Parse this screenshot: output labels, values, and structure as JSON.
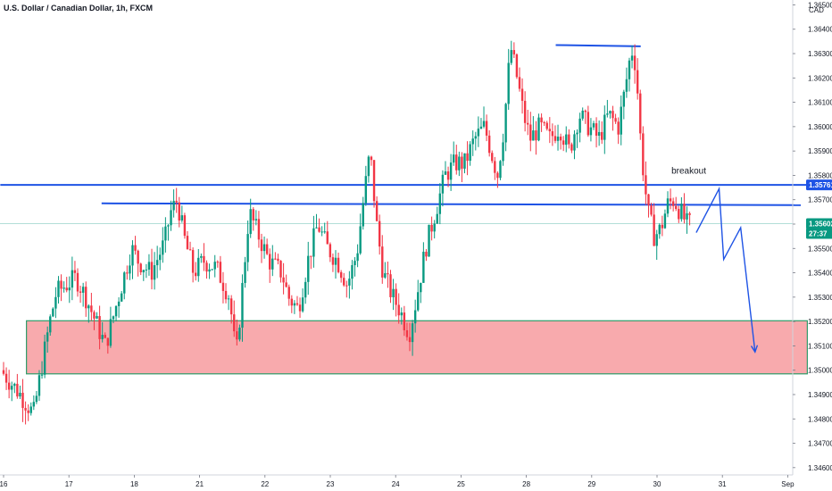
{
  "chart_data": {
    "type": "candlestick",
    "title": "U.S. Dollar / Canadian Dollar, 1h, FXCM",
    "currency": "CAD",
    "ylim": [
      1.3457,
      1.3652
    ],
    "yticks": [
      "1.34600",
      "1.34700",
      "1.34800",
      "1.34900",
      "1.35000",
      "1.35100",
      "1.35200",
      "1.35300",
      "1.35400",
      "1.35500",
      "1.35600",
      "1.35700",
      "1.35800",
      "1.35900",
      "1.36000",
      "1.36100",
      "1.36200",
      "1.36300",
      "1.36400",
      "1.36500"
    ],
    "xticks": [
      {
        "label": "16",
        "x": 0.0
      },
      {
        "label": "17",
        "x": 1.0
      },
      {
        "label": "18",
        "x": 2.0
      },
      {
        "label": "21",
        "x": 3.0
      },
      {
        "label": "22",
        "x": 4.0
      },
      {
        "label": "23",
        "x": 5.0
      },
      {
        "label": "24",
        "x": 6.0
      },
      {
        "label": "25",
        "x": 7.0
      },
      {
        "label": "28",
        "x": 8.0
      },
      {
        "label": "29",
        "x": 9.0
      },
      {
        "label": "30",
        "x": 10.0
      },
      {
        "label": "31",
        "x": 11.0
      },
      {
        "label": "Sep",
        "x": 12.0
      }
    ],
    "xlim": [
      -0.05,
      12.3
    ],
    "price_path": [
      [
        0.0,
        1.35
      ],
      [
        0.3,
        1.349
      ],
      [
        0.5,
        1.3482
      ],
      [
        0.65,
        1.3505
      ],
      [
        0.75,
        1.352
      ],
      [
        0.85,
        1.3532
      ],
      [
        1.0,
        1.3535
      ],
      [
        1.15,
        1.3538
      ],
      [
        1.3,
        1.353
      ],
      [
        1.45,
        1.352
      ],
      [
        1.6,
        1.351
      ],
      [
        1.75,
        1.3525
      ],
      [
        1.9,
        1.354
      ],
      [
        2.0,
        1.355
      ],
      [
        2.1,
        1.3545
      ],
      [
        2.3,
        1.354
      ],
      [
        2.5,
        1.3552
      ],
      [
        2.6,
        1.3565
      ],
      [
        2.7,
        1.357
      ],
      [
        2.8,
        1.3555
      ],
      [
        2.95,
        1.354
      ],
      [
        3.1,
        1.3545
      ],
      [
        3.3,
        1.3542
      ],
      [
        3.5,
        1.353
      ],
      [
        3.6,
        1.3505
      ],
      [
        3.7,
        1.3535
      ],
      [
        3.8,
        1.3565
      ],
      [
        3.95,
        1.3555
      ],
      [
        4.1,
        1.3545
      ],
      [
        4.3,
        1.354
      ],
      [
        4.4,
        1.353
      ],
      [
        4.55,
        1.3525
      ],
      [
        4.7,
        1.3545
      ],
      [
        4.85,
        1.356
      ],
      [
        5.0,
        1.355
      ],
      [
        5.15,
        1.3545
      ],
      [
        5.3,
        1.3535
      ],
      [
        5.45,
        1.3548
      ],
      [
        5.55,
        1.357
      ],
      [
        5.65,
        1.359
      ],
      [
        5.75,
        1.356
      ],
      [
        5.85,
        1.354
      ],
      [
        6.0,
        1.353
      ],
      [
        6.1,
        1.3525
      ],
      [
        6.25,
        1.3515
      ],
      [
        6.35,
        1.3528
      ],
      [
        6.5,
        1.355
      ],
      [
        6.65,
        1.3565
      ],
      [
        6.8,
        1.358
      ],
      [
        6.95,
        1.3585
      ],
      [
        7.1,
        1.3585
      ],
      [
        7.25,
        1.3595
      ],
      [
        7.4,
        1.36
      ],
      [
        7.5,
        1.359
      ],
      [
        7.6,
        1.358
      ],
      [
        7.7,
        1.36
      ],
      [
        7.8,
        1.3633
      ],
      [
        7.9,
        1.362
      ],
      [
        8.0,
        1.3605
      ],
      [
        8.1,
        1.3595
      ],
      [
        8.25,
        1.36
      ],
      [
        8.4,
        1.3595
      ],
      [
        8.55,
        1.36
      ],
      [
        8.7,
        1.359
      ],
      [
        8.85,
        1.3605
      ],
      [
        9.0,
        1.36
      ],
      [
        9.15,
        1.3595
      ],
      [
        9.3,
        1.3605
      ],
      [
        9.45,
        1.36
      ],
      [
        9.55,
        1.3615
      ],
      [
        9.65,
        1.3632
      ],
      [
        9.72,
        1.3625
      ],
      [
        9.8,
        1.359
      ],
      [
        9.9,
        1.3565
      ],
      [
        10.0,
        1.3555
      ],
      [
        10.1,
        1.3558
      ],
      [
        10.2,
        1.3568
      ],
      [
        10.3,
        1.357
      ],
      [
        10.4,
        1.3565
      ],
      [
        10.5,
        1.356
      ]
    ],
    "resistance_lines": [
      {
        "x1": -0.05,
        "y1": 1.35761,
        "x2": 12.3,
        "y2": 1.35761
      },
      {
        "x1": 1.5,
        "y1": 1.35685,
        "x2": 12.2,
        "y2": 1.35678
      },
      {
        "x1": 8.45,
        "y1": 1.36335,
        "x2": 9.75,
        "y2": 1.3633
      }
    ],
    "support_zone": {
      "x1": 0.35,
      "x2": 12.3,
      "y1": 1.35203,
      "y2": 1.34985
    },
    "forecast_path": [
      [
        10.6,
        1.35565
      ],
      [
        10.95,
        1.35745
      ],
      [
        11.02,
        1.35455
      ],
      [
        11.28,
        1.35585
      ],
      [
        11.5,
        1.35075
      ]
    ],
    "annotation": {
      "text": "breakout",
      "x": 10.22,
      "y": 1.35785
    },
    "price_labels": [
      {
        "value": "1.35761",
        "y": 1.35761,
        "color": "#1e53e5"
      },
      {
        "value": "1.35602",
        "y": 1.35602,
        "color": "#089981"
      },
      {
        "value": "27:37",
        "y": 1.3557,
        "color": "#089981"
      }
    ],
    "current_price_line": 1.35602,
    "colors": {
      "up": "#089981",
      "down": "#f23645",
      "line": "#1e53e5",
      "zone_fill": "#f8a5a9",
      "zone_border": "#2e9c6a"
    },
    "grid": false
  }
}
